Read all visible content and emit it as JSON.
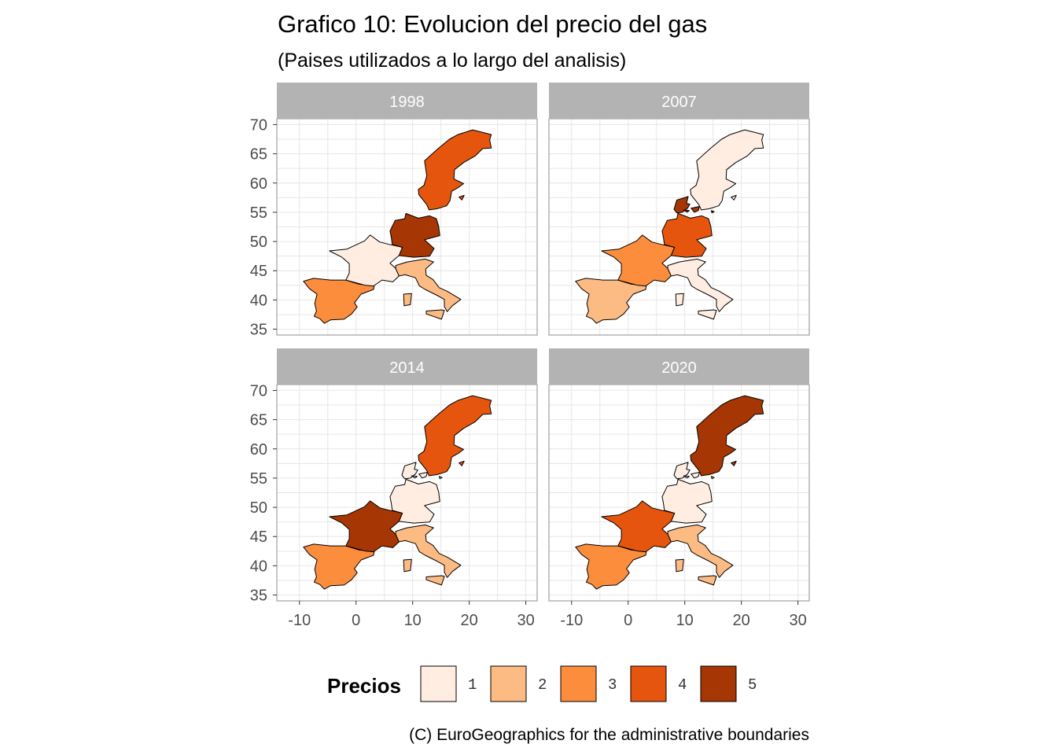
{
  "title": "Grafico 10: Evolucion del precio del gas",
  "subtitle": "(Paises utilizados a lo largo del analisis)",
  "caption": "(C) EuroGeographics for the administrative boundaries",
  "legend": {
    "title": "Precios",
    "items": [
      {
        "label": "1",
        "level": 1,
        "color": "#feede0"
      },
      {
        "label": "2",
        "level": 2,
        "color": "#fdbb84"
      },
      {
        "label": "3",
        "level": 3,
        "color": "#fc8d3c"
      },
      {
        "label": "4",
        "level": 4,
        "color": "#e6550d"
      },
      {
        "label": "5",
        "level": 5,
        "color": "#a63603"
      }
    ]
  },
  "axes": {
    "x_ticks": [
      "-10",
      "0",
      "10",
      "20",
      "30"
    ],
    "y_ticks": [
      "70",
      "65",
      "60",
      "55",
      "50",
      "45",
      "40",
      "35"
    ],
    "xlim": [
      -14,
      32
    ],
    "ylim": [
      34,
      71
    ]
  },
  "strip_color": "#b3b3b3",
  "chart_data": {
    "type": "choropleth",
    "scale": "Precios 1-5",
    "facets": [
      {
        "label": "1998",
        "values": {
          "Spain": 3,
          "France": 1,
          "Germany": 5,
          "Italy": 2,
          "Sweden": 4
        }
      },
      {
        "label": "2007",
        "values": {
          "Spain": 2,
          "France": 3,
          "Germany": 4,
          "Italy": 1,
          "Sweden": 1,
          "Denmark": 5
        }
      },
      {
        "label": "2014",
        "values": {
          "Spain": 3,
          "France": 5,
          "Germany": 1,
          "Italy": 2,
          "Sweden": 4,
          "Denmark": 1
        }
      },
      {
        "label": "2020",
        "values": {
          "Spain": 3,
          "France": 4,
          "Germany": 1,
          "Italy": 2,
          "Sweden": 5,
          "Denmark": 1
        }
      }
    ]
  }
}
